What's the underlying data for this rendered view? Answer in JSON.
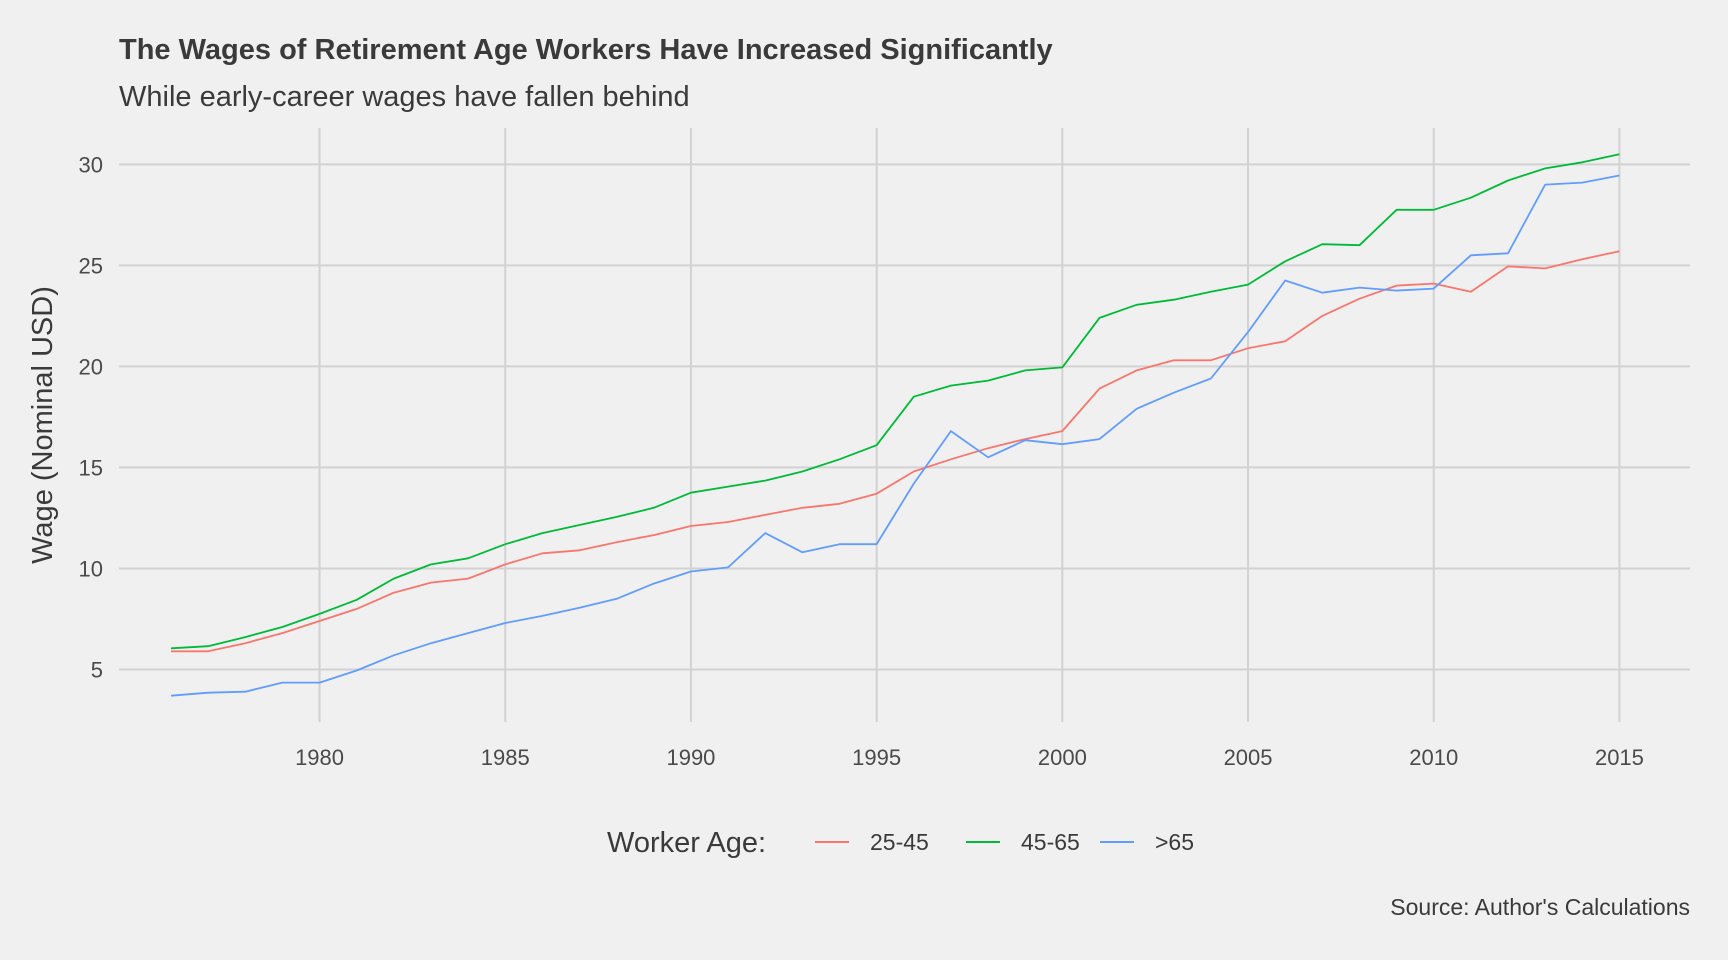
{
  "chart_data": {
    "type": "line",
    "title": "The Wages of Retirement Age Workers Have Increased Significantly",
    "subtitle": "While early-career wages have fallen behind",
    "caption": "Source: Author's Calculations",
    "xlabel": "",
    "ylabel": "Wage (Nominal USD)",
    "xlim": [
      1974.6,
      2016.9
    ],
    "ylim": [
      2.4,
      31.8
    ],
    "xticks": [
      1980,
      1985,
      1990,
      1995,
      2000,
      2005,
      2010,
      2015
    ],
    "yticks": [
      5,
      10,
      15,
      20,
      25,
      30
    ],
    "grid": true,
    "legend": {
      "title": "Worker Age:",
      "position": "bottom"
    },
    "x": [
      1976,
      1977,
      1978,
      1979,
      1980,
      1981,
      1982,
      1983,
      1984,
      1985,
      1986,
      1987,
      1988,
      1989,
      1990,
      1991,
      1992,
      1993,
      1994,
      1995,
      1996,
      1997,
      1998,
      1999,
      2000,
      2001,
      2002,
      2003,
      2004,
      2005,
      2006,
      2007,
      2008,
      2009,
      2010,
      2011,
      2012,
      2013,
      2014,
      2015
    ],
    "series": [
      {
        "name": "25-45",
        "color": "#f8766d",
        "values": [
          5.9,
          5.9,
          6.3,
          6.8,
          7.4,
          8.0,
          8.8,
          9.3,
          9.5,
          10.2,
          10.75,
          10.9,
          11.3,
          11.65,
          12.1,
          12.3,
          12.65,
          13.0,
          13.2,
          13.7,
          14.8,
          15.4,
          15.95,
          16.4,
          16.8,
          18.9,
          19.8,
          20.3,
          20.3,
          20.9,
          21.25,
          22.5,
          23.35,
          24.0,
          24.1,
          23.7,
          24.95,
          24.85,
          25.3,
          25.7
        ]
      },
      {
        "name": "45-65",
        "color": "#00ba38",
        "values": [
          6.05,
          6.15,
          6.6,
          7.1,
          7.75,
          8.45,
          9.5,
          10.2,
          10.5,
          11.2,
          11.75,
          12.15,
          12.55,
          13.0,
          13.75,
          14.05,
          14.35,
          14.8,
          15.4,
          16.1,
          18.5,
          19.05,
          19.3,
          19.8,
          19.95,
          22.4,
          23.05,
          23.3,
          23.7,
          24.05,
          25.2,
          26.05,
          26.0,
          27.75,
          27.75,
          28.35,
          29.2,
          29.8,
          30.1,
          30.5
        ]
      },
      {
        "name": ">65",
        "color": "#619cff",
        "values": [
          3.7,
          3.85,
          3.9,
          4.35,
          4.35,
          4.95,
          5.7,
          6.3,
          6.8,
          7.3,
          7.65,
          8.05,
          8.5,
          9.25,
          9.85,
          10.05,
          11.75,
          10.8,
          11.2,
          11.2,
          14.2,
          16.8,
          15.5,
          16.35,
          16.15,
          16.4,
          17.9,
          18.7,
          19.4,
          21.7,
          24.25,
          23.65,
          23.9,
          23.75,
          23.85,
          25.5,
          25.6,
          29.0,
          29.1,
          29.45
        ]
      }
    ]
  }
}
